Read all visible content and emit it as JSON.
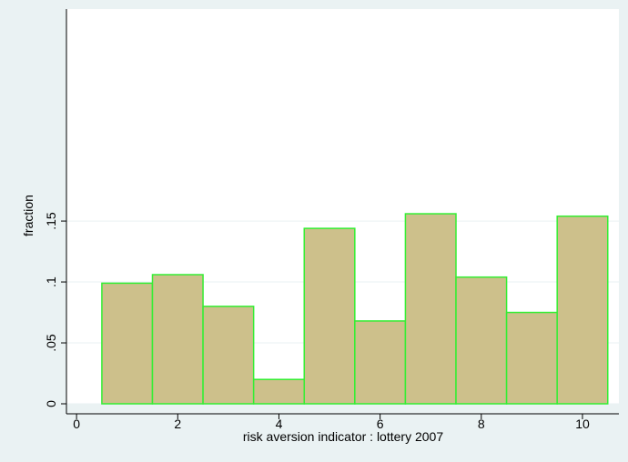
{
  "chart_data": {
    "type": "histogram",
    "x_label": "risk aversion indicator : lottery 2007",
    "y_label": "fraction",
    "bins": [
      0.5,
      1.5,
      2.5,
      3.5,
      4.5,
      5.5,
      6.5,
      7.5,
      8.5,
      9.5,
      10.5
    ],
    "values": [
      0.099,
      0.106,
      0.08,
      0.02,
      0.144,
      0.068,
      0.156,
      0.104,
      0.075,
      0.154
    ],
    "color": "#cdc08b",
    "edge_color": "#33ee33",
    "xlim": [
      -0.2,
      10.72
    ],
    "xticks": [
      0,
      2,
      4,
      6,
      8,
      10
    ],
    "ylim": [
      0,
      0.324
    ],
    "yticks": [
      0,
      {
        "value": 0.05,
        "label": ".05"
      },
      {
        "value": 0.1,
        "label": ".1"
      },
      {
        "value": 0.15,
        "label": ".15"
      }
    ],
    "grid": true
  }
}
